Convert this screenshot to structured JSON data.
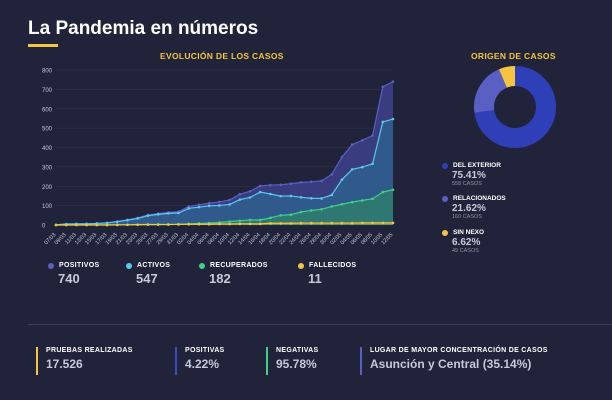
{
  "header": {
    "title": "La Pandemia en números"
  },
  "line_chart_title": "EVOLUCIÓN DE LOS CASOS",
  "donut_title": "ORIGEN DE CASOS",
  "colors": {
    "positivos": "#5a5fc4",
    "activos": "#5bc8ee",
    "recuperados": "#3fd08a",
    "fallecidos": "#f5c542",
    "accent": "#f5c542"
  },
  "legend": [
    {
      "label": "POSITIVOS",
      "value": "740",
      "color": "#5a5fc4"
    },
    {
      "label": "ACTIVOS",
      "value": "547",
      "color": "#5bc8ee"
    },
    {
      "label": "RECUPERADOS",
      "value": "182",
      "color": "#3fd08a"
    },
    {
      "label": "FALLECIDOS",
      "value": "11",
      "color": "#f5c542"
    }
  ],
  "origin": [
    {
      "label": "DEL EXTERIOR",
      "pct": "75.41%",
      "count": "558 CASOS",
      "color": "#2f3fb8"
    },
    {
      "label": "RELACIONADOS",
      "pct": "21.62%",
      "count": "160 CASOS",
      "color": "#5a5fc4"
    },
    {
      "label": "SIN NEXO",
      "pct": "6.62%",
      "count": "49 CASOS",
      "color": "#f5c542"
    }
  ],
  "stats": [
    {
      "label": "PRUEBAS REALIZADAS",
      "value": "17.526",
      "color": "#f5c542"
    },
    {
      "label": "POSITIVAS",
      "value": "4.22%",
      "color": "#3a4bc8"
    },
    {
      "label": "NEGATIVAS",
      "value": "95.78%",
      "color": "#3fd08a"
    },
    {
      "label": "LUGAR DE MAYOR CONCENTRACIÓN DE CASOS",
      "value": "Asunción y Central (35.14%)",
      "color": "#5a5fc4"
    }
  ],
  "chart_data": [
    {
      "type": "area",
      "title": "EVOLUCIÓN DE LOS CASOS",
      "x": [
        "07/03",
        "09/03",
        "11/03",
        "13/03",
        "15/03",
        "17/03",
        "19/03",
        "21/03",
        "23/03",
        "25/03",
        "27/03",
        "29/03",
        "31/03",
        "02/04",
        "04/04",
        "06/04",
        "08/04",
        "10/04",
        "12/04",
        "14/04",
        "16/04",
        "18/04",
        "20/04",
        "22/04",
        "24/04",
        "26/04",
        "28/04",
        "30/04",
        "02/05",
        "04/05",
        "06/05",
        "08/05",
        "10/05",
        "12/05"
      ],
      "yticks": [
        0,
        100,
        200,
        300,
        400,
        500,
        600,
        700,
        800
      ],
      "ylim": [
        0,
        800
      ],
      "grid": true,
      "series": [
        {
          "name": "POSITIVOS",
          "values": [
            1,
            5,
            6,
            6,
            8,
            11,
            18,
            27,
            37,
            52,
            59,
            65,
            69,
            96,
            104,
            113,
            119,
            129,
            159,
            174,
            202,
            206,
            208,
            213,
            220,
            223,
            228,
            261,
            351,
            415,
            437,
            462,
            713,
            740
          ]
        },
        {
          "name": "ACTIVOS",
          "values": [
            1,
            5,
            6,
            6,
            8,
            11,
            17,
            25,
            34,
            48,
            55,
            60,
            62,
            86,
            92,
            99,
            101,
            106,
            131,
            142,
            170,
            160,
            149,
            150,
            143,
            138,
            137,
            155,
            234,
            287,
            299,
            316,
            532,
            547
          ]
        },
        {
          "name": "RECUPERADOS",
          "values": [
            0,
            0,
            0,
            0,
            0,
            0,
            0,
            1,
            1,
            1,
            1,
            2,
            4,
            6,
            8,
            10,
            13,
            18,
            22,
            26,
            26,
            37,
            50,
            53,
            67,
            75,
            81,
            96,
            107,
            118,
            127,
            135,
            170,
            182
          ]
        },
        {
          "name": "FALLECIDOS",
          "values": [
            0,
            0,
            0,
            0,
            0,
            0,
            1,
            1,
            2,
            3,
            3,
            3,
            3,
            4,
            4,
            4,
            5,
            5,
            6,
            6,
            6,
            9,
            9,
            9,
            10,
            10,
            10,
            10,
            10,
            10,
            11,
            11,
            11,
            11
          ]
        }
      ]
    },
    {
      "type": "pie",
      "title": "ORIGEN DE CASOS",
      "categories": [
        "DEL EXTERIOR",
        "RELACIONADOS",
        "SIN NEXO"
      ],
      "values": [
        75.41,
        21.62,
        6.62
      ]
    }
  ]
}
